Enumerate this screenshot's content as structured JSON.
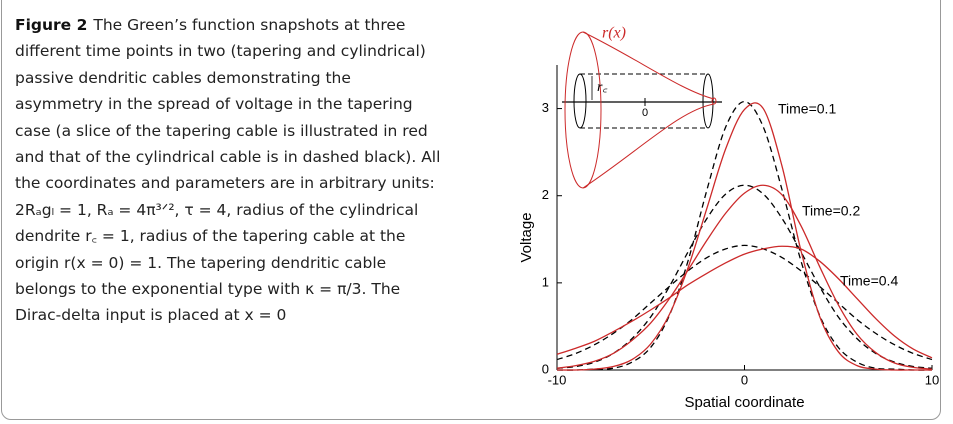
{
  "caption": {
    "label": "Figure 2",
    "lines": [
      "The Green’s function snapshots at three",
      "different time points in two (tapering and cylindrical)",
      "passive dendritic cables demonstrating the",
      "asymmetry in the spread of voltage in the tapering",
      "case (a slice of the tapering cable is illustrated in red",
      "and that of the cylindrical cable is in dashed black). All",
      "the coordinates and parameters are in arbitrary units:",
      "2Rₐgₗ = 1, Rₐ = 4π³ᐟ², τ = 4, radius of the cylindrical",
      "dendrite r꜀ = 1, radius of the tapering cable at the",
      "origin r(x = 0) = 1. The tapering dendritic cable",
      "belongs to the exponential type with κ = π/3. The",
      "Dirac-delta input is placed at x = 0"
    ]
  },
  "inset": {
    "cone_label": "r(x)",
    "cylinder_label": "r꜀",
    "origin_label": "0"
  },
  "chart_data": {
    "type": "line",
    "x_label": "Spatial coordinate",
    "y_label": "Voltage",
    "annotations": [
      "Time=0.1",
      "Time=0.2",
      "Time=0.4"
    ],
    "x": [
      -10,
      -9,
      -8,
      -7,
      -6,
      -5,
      -4,
      -3,
      -2,
      -1,
      0,
      1,
      2,
      3,
      4,
      5,
      6,
      7,
      8,
      9,
      10
    ],
    "series": [
      {
        "color": "#000000",
        "dashed": true,
        "values": [
          0,
          0,
          0.01,
          0.02,
          0.09,
          0.26,
          0.63,
          1.26,
          2.07,
          2.79,
          3.08,
          2.79,
          2.07,
          1.26,
          0.63,
          0.26,
          0.09,
          0.02,
          0.01,
          0,
          0
        ]
      },
      {
        "color": "#000000",
        "dashed": true,
        "values": [
          0.02,
          0.04,
          0.09,
          0.19,
          0.36,
          0.61,
          0.96,
          1.36,
          1.74,
          2.02,
          2.12,
          2.02,
          1.74,
          1.36,
          0.96,
          0.61,
          0.36,
          0.19,
          0.09,
          0.04,
          0.02
        ]
      },
      {
        "color": "#000000",
        "dashed": true,
        "values": [
          0.12,
          0.19,
          0.29,
          0.42,
          0.58,
          0.77,
          0.96,
          1.14,
          1.29,
          1.39,
          1.43,
          1.39,
          1.29,
          1.14,
          0.96,
          0.77,
          0.58,
          0.42,
          0.29,
          0.19,
          0.12
        ]
      },
      {
        "color": "#cc2a2a",
        "dashed": false,
        "values": [
          0,
          0,
          0.01,
          0.04,
          0.12,
          0.3,
          0.64,
          1.18,
          1.86,
          2.54,
          2.99,
          3.0,
          2.34,
          1.38,
          0.62,
          0.21,
          0.05,
          0.01,
          0,
          0,
          0
        ]
      },
      {
        "color": "#cc2a2a",
        "dashed": false,
        "values": [
          0.02,
          0.05,
          0.1,
          0.19,
          0.34,
          0.54,
          0.82,
          1.15,
          1.49,
          1.8,
          2.03,
          2.12,
          2.01,
          1.66,
          1.19,
          0.75,
          0.41,
          0.2,
          0.08,
          0.03,
          0.01
        ]
      },
      {
        "color": "#cc2a2a",
        "dashed": false,
        "values": [
          0.18,
          0.25,
          0.33,
          0.44,
          0.56,
          0.69,
          0.83,
          0.98,
          1.11,
          1.23,
          1.33,
          1.39,
          1.42,
          1.39,
          1.25,
          1.05,
          0.82,
          0.59,
          0.39,
          0.24,
          0.14
        ]
      }
    ],
    "xlim": [
      -10,
      10
    ],
    "xticks": [
      -10,
      0,
      10
    ],
    "ylim": [
      0,
      3.5
    ],
    "yticks": [
      0,
      1,
      2,
      3
    ]
  }
}
